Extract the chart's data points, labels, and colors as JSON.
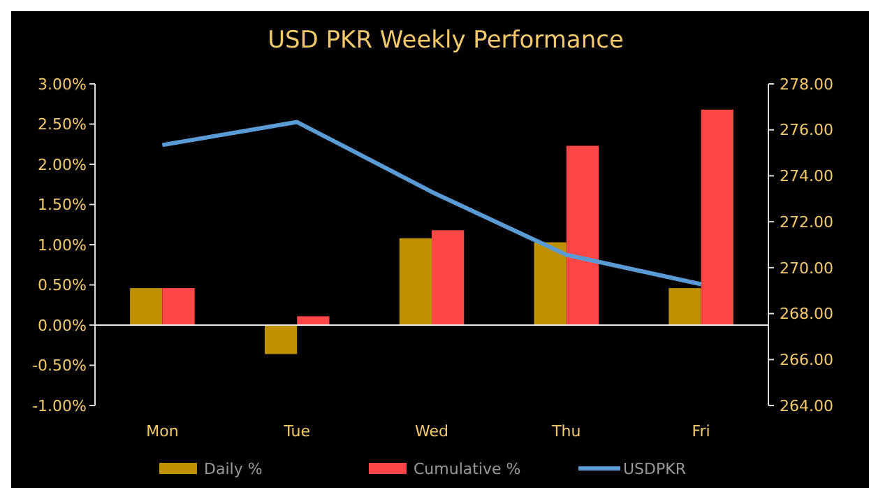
{
  "chart_data": {
    "type": "bar",
    "title": "USD PKR Weekly Performance",
    "categories": [
      "Mon",
      "Tue",
      "Wed",
      "Thu",
      "Fri"
    ],
    "series": [
      {
        "name": "Daily %",
        "color": "#bf9000",
        "values": [
          0.46,
          -0.36,
          1.08,
          1.03,
          0.46
        ]
      },
      {
        "name": "Cumulative %",
        "color": "#ff4747",
        "values": [
          0.46,
          0.11,
          1.18,
          2.23,
          2.68
        ]
      },
      {
        "name": "USDPKR",
        "type": "line",
        "axis": "y2",
        "color": "#5b9bd5",
        "values": [
          275.34,
          276.34,
          273.3,
          270.56,
          269.28
        ]
      }
    ],
    "ylim": [
      -1,
      3
    ],
    "yticks": [
      {
        "value": -1,
        "label": "-1.00%"
      },
      {
        "value": -0.5,
        "label": "-0.50%"
      },
      {
        "value": 0,
        "label": "0.00%"
      },
      {
        "value": 0.5,
        "label": "0.50%"
      },
      {
        "value": 1,
        "label": "1.00%"
      },
      {
        "value": 1.5,
        "label": "1.50%"
      },
      {
        "value": 2,
        "label": "2.00%"
      },
      {
        "value": 2.5,
        "label": "2.50%"
      },
      {
        "value": 3,
        "label": "3.00%"
      }
    ],
    "y2lim": [
      264,
      278
    ],
    "y2ticks": [
      {
        "value": 264,
        "label": "264.00"
      },
      {
        "value": 266,
        "label": "266.00"
      },
      {
        "value": 268,
        "label": "268.00"
      },
      {
        "value": 270,
        "label": "270.00"
      },
      {
        "value": 272,
        "label": "272.00"
      },
      {
        "value": 274,
        "label": "274.00"
      },
      {
        "value": 276,
        "label": "276.00"
      },
      {
        "value": 278,
        "label": "278.00"
      }
    ],
    "legend": "bottom",
    "marker": "none",
    "line_style": "solid"
  }
}
